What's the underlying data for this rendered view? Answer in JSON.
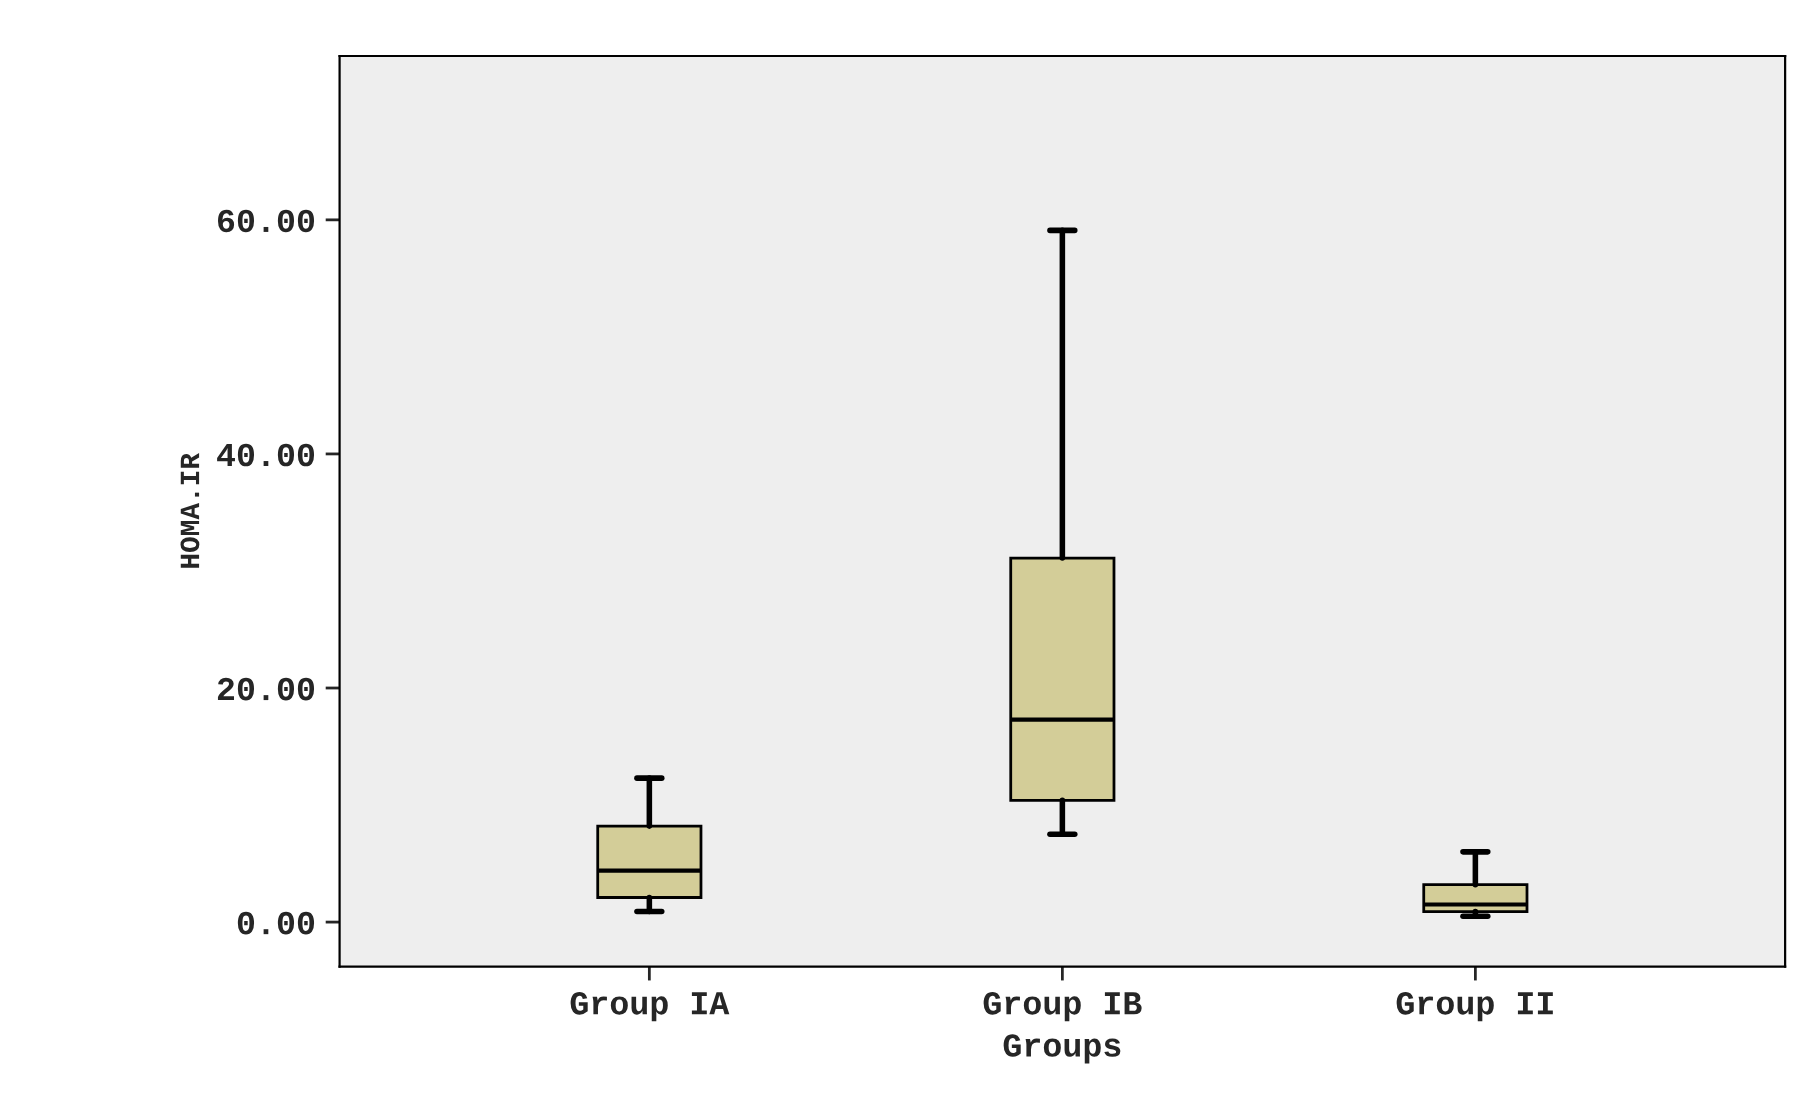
{
  "chart_data": {
    "type": "box",
    "xlabel": "Groups",
    "ylabel": "HOMA.IR",
    "categories": [
      "Group IA",
      "Group IB",
      "Group II"
    ],
    "boxes": [
      {
        "low": 0.9,
        "q1": 2.1,
        "median": 4.4,
        "q3": 8.2,
        "high": 12.3
      },
      {
        "low": 7.5,
        "q1": 10.4,
        "median": 17.3,
        "q3": 31.1,
        "high": 59.1
      },
      {
        "low": 0.5,
        "q1": 0.9,
        "median": 1.5,
        "q3": 3.2,
        "high": 6.0
      }
    ],
    "color": "#d3cd98",
    "ylim": [
      -3.8,
      74
    ],
    "yticks": [
      {
        "value": 0,
        "label": "0.00"
      },
      {
        "value": 20,
        "label": "20.00"
      },
      {
        "value": 40,
        "label": "40.00"
      },
      {
        "value": 60,
        "label": "60.00"
      }
    ],
    "grid": false
  }
}
